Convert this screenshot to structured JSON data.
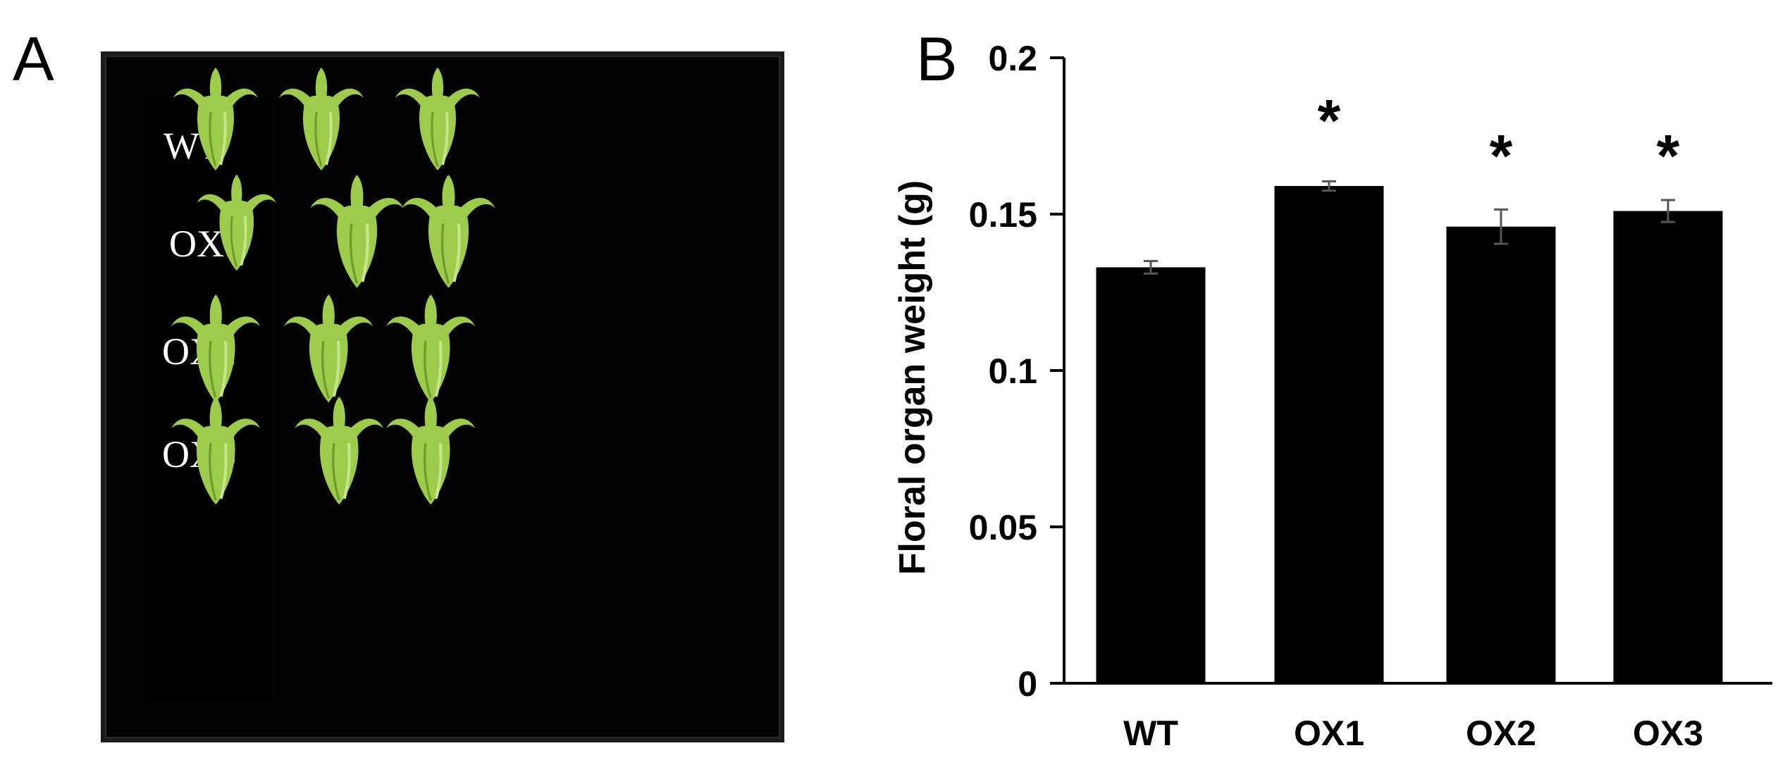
{
  "panels": {
    "a_letter": "A",
    "b_letter": "B"
  },
  "photo": {
    "row_labels": [
      "WT",
      "OX1",
      "OX2",
      "OX3"
    ],
    "flowers_per_row": 3,
    "background_color": "#030303",
    "flower_color": "#9ccc4a"
  },
  "chart_data": {
    "type": "bar",
    "categories": [
      "WT",
      "OX1",
      "OX2",
      "OX3"
    ],
    "values": [
      0.133,
      0.159,
      0.146,
      0.151
    ],
    "errors": [
      0.002,
      0.0015,
      0.0055,
      0.0035
    ],
    "significance": [
      "",
      "*",
      "*",
      "*"
    ],
    "ylabel": "Floral organ weight (g)",
    "xlabel": "",
    "ylim": [
      0,
      0.2
    ],
    "yticks": [
      0,
      0.05,
      0.1,
      0.15,
      0.2
    ],
    "ytick_labels": [
      "0",
      "0.05",
      "0.1",
      "0.15",
      "0.2"
    ],
    "bar_color": "#000000",
    "error_bar_color": "#555555",
    "grid": false,
    "legend": "none"
  }
}
